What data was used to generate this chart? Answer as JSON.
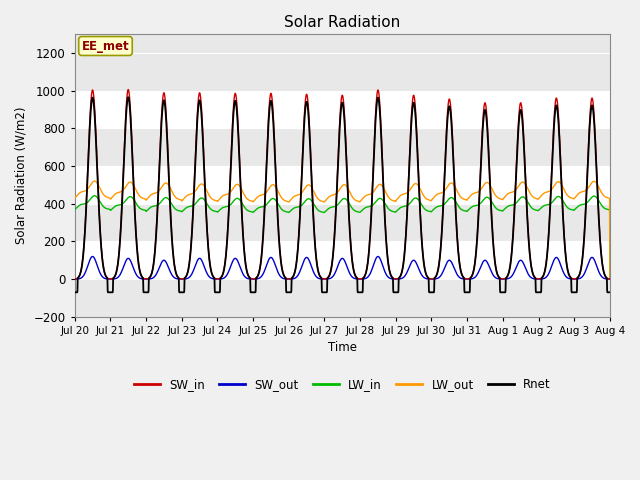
{
  "title": "Solar Radiation",
  "ylabel": "Solar Radiation (W/m2)",
  "xlabel": "Time",
  "annotation_text": "EE_met",
  "n_days": 15,
  "ylim": [
    -200,
    1300
  ],
  "yticks": [
    -200,
    0,
    200,
    400,
    600,
    800,
    1000,
    1200
  ],
  "xtick_labels": [
    "Jul 20",
    "Jul 21",
    "Jul 22",
    "Jul 23",
    "Jul 24",
    "Jul 25",
    "Jul 26",
    "Jul 27",
    "Jul 28",
    "Jul 29",
    "Jul 30",
    "Jul 31",
    "Aug 1",
    "Aug 2",
    "Aug 3",
    "Aug 4"
  ],
  "SW_in_peaks": [
    1003,
    1005,
    988,
    988,
    985,
    985,
    980,
    975,
    1003,
    975,
    955,
    935,
    935,
    960,
    960
  ],
  "SW_out_peaks": [
    120,
    110,
    100,
    110,
    110,
    115,
    115,
    110,
    120,
    100,
    100,
    100,
    100,
    115,
    115
  ],
  "LW_in_base": 350,
  "LW_out_base": 400,
  "Rnet_night": -70,
  "bg_color": "#f0f0f0",
  "plot_bg_light": "#ffffff",
  "plot_bg_dark": "#e8e8e8",
  "SW_in_color": "#cc0000",
  "SW_out_color": "#0000cc",
  "LW_in_color": "#00bb00",
  "LW_out_color": "#ff9900",
  "Rnet_color": "#000000",
  "linewidth": 1.0
}
